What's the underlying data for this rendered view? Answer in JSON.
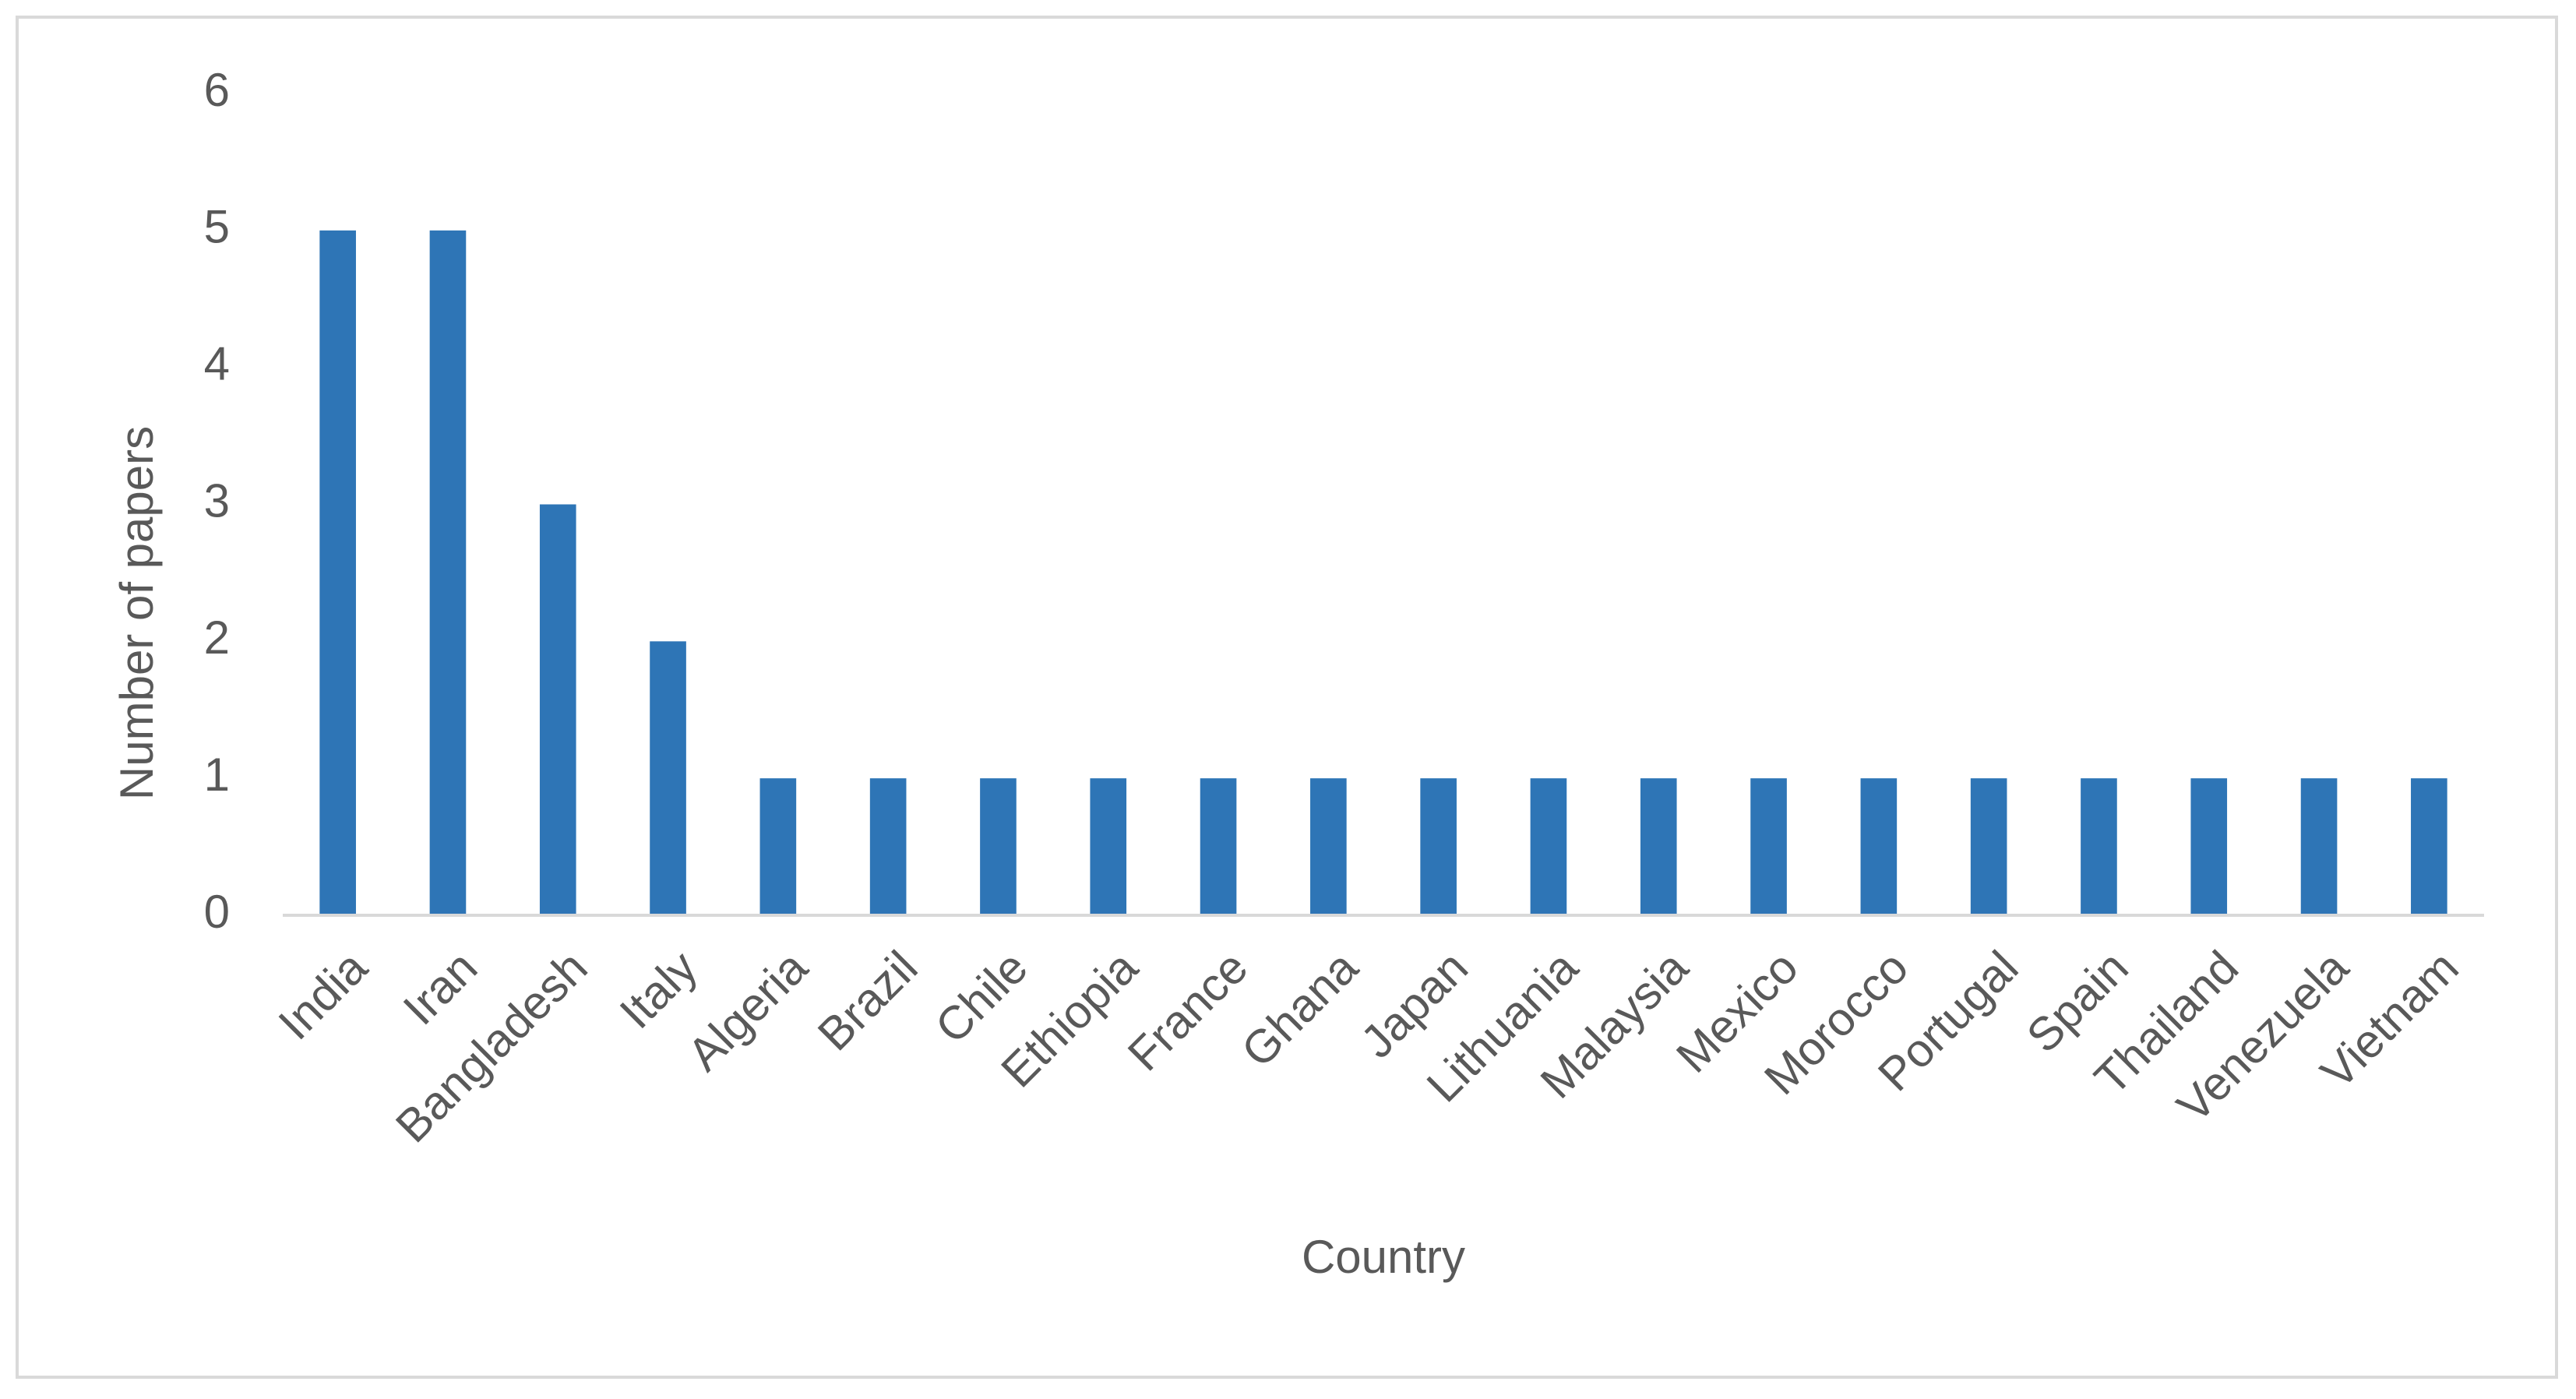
{
  "chart_data": {
    "type": "bar",
    "x_label": "Country",
    "y_label": "Number of papers",
    "categories": [
      "India",
      "Iran",
      "Bangladesh",
      "Italy",
      "Algeria",
      "Brazil",
      "Chile",
      "Ethiopia",
      "France",
      "Ghana",
      "Japan",
      "Lithuania",
      "Malaysia",
      "Mexico",
      "Morocco",
      "Portugal",
      "Spain",
      "Thailand",
      "Venezuela",
      "Vietnam"
    ],
    "values": [
      5,
      5,
      3,
      2,
      1,
      1,
      1,
      1,
      1,
      1,
      1,
      1,
      1,
      1,
      1,
      1,
      1,
      1,
      1,
      1
    ],
    "color": "#2e75b6",
    "ylim": [
      0,
      6
    ],
    "yticks": [
      0,
      1,
      2,
      3,
      4,
      5,
      6
    ],
    "grid": false
  }
}
